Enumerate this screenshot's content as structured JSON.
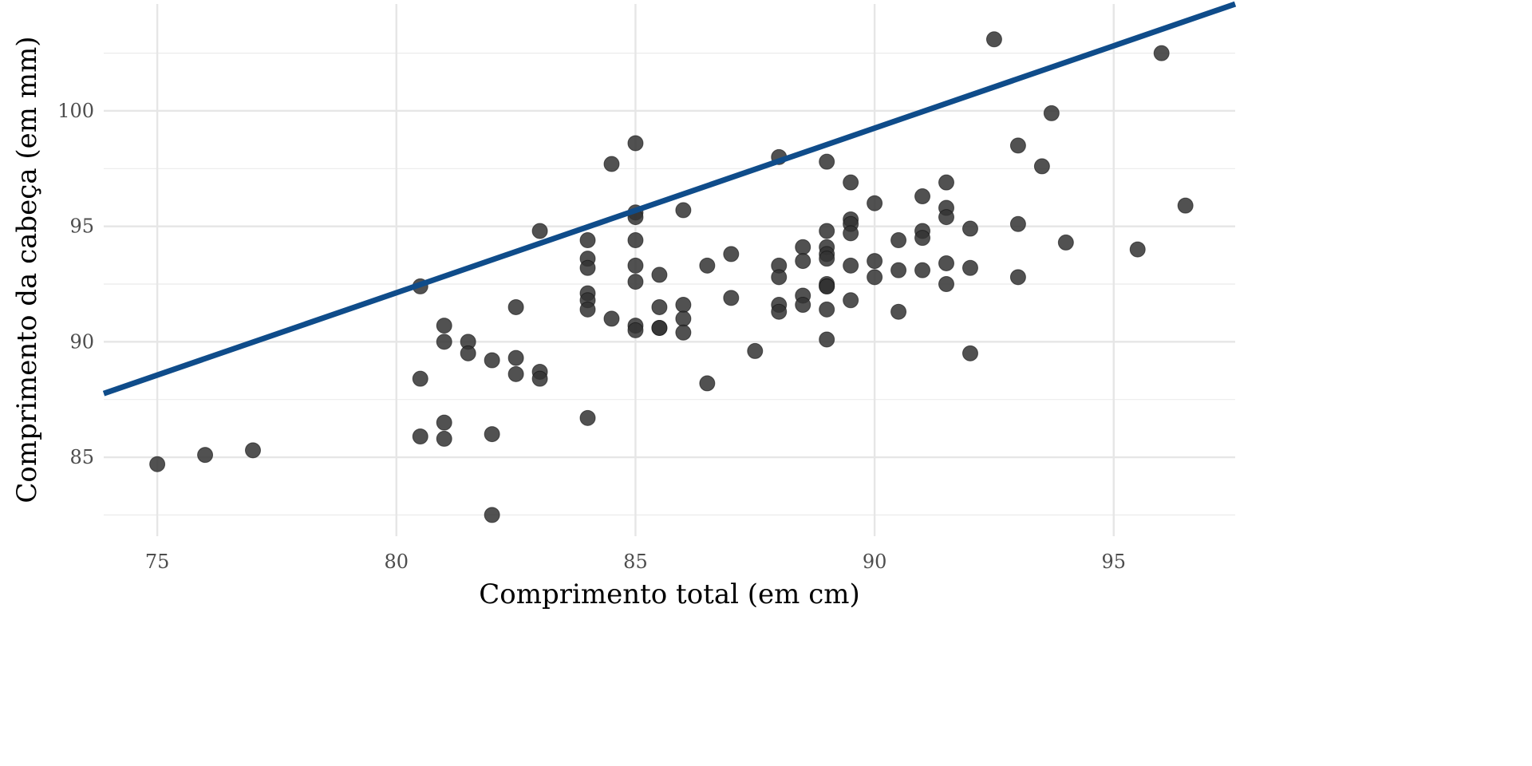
{
  "chart_data": {
    "type": "scatter",
    "title": "",
    "xlabel": "Comprimento total (em cm)",
    "ylabel": "Comprimento da cabeça (em mm)",
    "xlim": [
      73.88,
      97.54
    ],
    "ylim": [
      81.58,
      104.63
    ],
    "x_ticks": [
      75,
      80,
      85,
      90,
      95
    ],
    "y_ticks": [
      85,
      90,
      95,
      100
    ],
    "grid": true,
    "point_color": "#333333",
    "line_color": "#0f4c8a",
    "reference_line": {
      "intercept_at_x": 73.88,
      "y_at_intercept": 87.76,
      "slope": 0.713
    },
    "points": [
      [
        75,
        84.7
      ],
      [
        76,
        85.1
      ],
      [
        77,
        85.3
      ],
      [
        80.5,
        92.4
      ],
      [
        80.5,
        88.4
      ],
      [
        80.5,
        85.9
      ],
      [
        81,
        90.7
      ],
      [
        81,
        90.0
      ],
      [
        81,
        86.5
      ],
      [
        81,
        85.8
      ],
      [
        81.5,
        90.0
      ],
      [
        81.5,
        89.5
      ],
      [
        82,
        89.2
      ],
      [
        82,
        86.0
      ],
      [
        82,
        82.5
      ],
      [
        82.5,
        91.5
      ],
      [
        82.5,
        89.3
      ],
      [
        82.5,
        88.6
      ],
      [
        83,
        94.8
      ],
      [
        83,
        88.7
      ],
      [
        83,
        88.4
      ],
      [
        84,
        94.4
      ],
      [
        84,
        93.6
      ],
      [
        84,
        93.2
      ],
      [
        84,
        92.1
      ],
      [
        84,
        91.8
      ],
      [
        84,
        91.4
      ],
      [
        84,
        86.7
      ],
      [
        84.5,
        97.7
      ],
      [
        84.5,
        91.0
      ],
      [
        85,
        98.6
      ],
      [
        85,
        95.6
      ],
      [
        85,
        95.4
      ],
      [
        85,
        94.4
      ],
      [
        85,
        93.3
      ],
      [
        85,
        92.6
      ],
      [
        85,
        90.7
      ],
      [
        85,
        90.5
      ],
      [
        85.5,
        92.9
      ],
      [
        85.5,
        91.5
      ],
      [
        85.5,
        90.6
      ],
      [
        85.5,
        90.6
      ],
      [
        86,
        95.7
      ],
      [
        86,
        91.6
      ],
      [
        86,
        91.0
      ],
      [
        86,
        90.4
      ],
      [
        86.5,
        93.3
      ],
      [
        86.5,
        88.2
      ],
      [
        87,
        93.8
      ],
      [
        87,
        91.9
      ],
      [
        87.5,
        89.6
      ],
      [
        88,
        98.0
      ],
      [
        88,
        93.3
      ],
      [
        88,
        92.8
      ],
      [
        88,
        91.6
      ],
      [
        88,
        91.3
      ],
      [
        88.5,
        94.1
      ],
      [
        88.5,
        93.5
      ],
      [
        88.5,
        92.0
      ],
      [
        88.5,
        91.6
      ],
      [
        89,
        97.8
      ],
      [
        89,
        94.8
      ],
      [
        89,
        94.1
      ],
      [
        89,
        93.8
      ],
      [
        89,
        93.6
      ],
      [
        89,
        92.5
      ],
      [
        89,
        92.4
      ],
      [
        89,
        92.4
      ],
      [
        89,
        91.4
      ],
      [
        89,
        90.1
      ],
      [
        89.5,
        96.9
      ],
      [
        89.5,
        95.3
      ],
      [
        89.5,
        95.1
      ],
      [
        89.5,
        94.7
      ],
      [
        89.5,
        93.3
      ],
      [
        89.5,
        91.8
      ],
      [
        90,
        96.0
      ],
      [
        90,
        93.5
      ],
      [
        90,
        92.8
      ],
      [
        90.5,
        94.4
      ],
      [
        90.5,
        93.1
      ],
      [
        90.5,
        91.3
      ],
      [
        91,
        96.3
      ],
      [
        91,
        94.8
      ],
      [
        91,
        94.5
      ],
      [
        91,
        93.1
      ],
      [
        91.5,
        96.9
      ],
      [
        91.5,
        95.8
      ],
      [
        91.5,
        95.4
      ],
      [
        91.5,
        93.4
      ],
      [
        91.5,
        92.5
      ],
      [
        92,
        94.9
      ],
      [
        92,
        93.2
      ],
      [
        92,
        89.5
      ],
      [
        92.5,
        103.1
      ],
      [
        93,
        98.5
      ],
      [
        93,
        95.1
      ],
      [
        93,
        92.8
      ],
      [
        93.5,
        97.6
      ],
      [
        93.7,
        99.9
      ],
      [
        94,
        94.3
      ],
      [
        95.5,
        94.0
      ],
      [
        96,
        102.5
      ],
      [
        96.5,
        95.9
      ]
    ]
  }
}
